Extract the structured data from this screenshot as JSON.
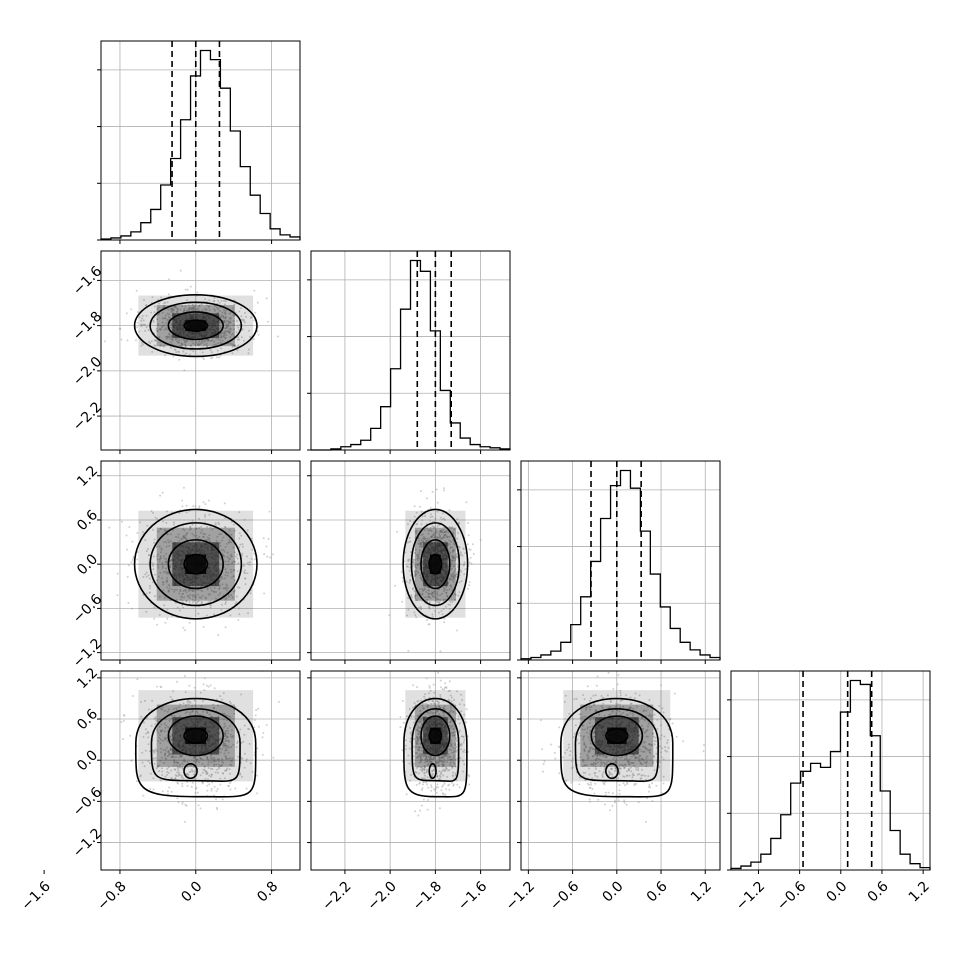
{
  "chart_data": {
    "type": "corner",
    "parameters": [
      {
        "name": "",
        "range": [
          -1.0,
          1.1
        ],
        "ticks": [
          -1.6,
          -0.8,
          0.0,
          0.8
        ],
        "tick_labels": [
          "−1.6",
          "−0.8",
          "0.0",
          "0.8"
        ]
      },
      {
        "name": "",
        "range": [
          -2.35,
          -1.47
        ],
        "ticks": [
          -2.2,
          -2.0,
          -1.8,
          -1.6
        ],
        "tick_labels": [
          "−2.2",
          "−2.0",
          "−1.8",
          "−1.6"
        ]
      },
      {
        "name": "",
        "range": [
          -1.3,
          1.4
        ],
        "ticks": [
          -1.2,
          -0.6,
          0.0,
          0.6,
          1.2
        ],
        "tick_labels": [
          "−1.2",
          "−0.6",
          "0.0",
          "0.6",
          "1.2"
        ]
      },
      {
        "name": "",
        "range": [
          -1.6,
          1.3
        ],
        "ticks": [
          -1.2,
          -0.6,
          0.0,
          0.6,
          1.2
        ],
        "tick_labels": [
          "−1.2",
          "−0.6",
          "0.0",
          "0.6",
          "1.2"
        ]
      }
    ],
    "histograms": [
      {
        "bin_edges_range": [
          -1.0,
          1.1
        ],
        "counts": [
          1,
          2,
          4,
          8,
          17,
          30,
          54,
          80,
          118,
          161,
          186,
          177,
          149,
          107,
          72,
          44,
          26,
          11,
          5,
          3
        ],
        "quantiles": [
          -0.25,
          0.0,
          0.25
        ]
      },
      {
        "bin_edges_range": [
          -2.35,
          -1.47
        ],
        "counts": [
          0,
          0,
          1,
          3,
          5,
          9,
          20,
          40,
          75,
          130,
          175,
          165,
          110,
          55,
          25,
          11,
          5,
          3,
          2,
          1
        ],
        "quantiles": [
          -1.88,
          -1.8,
          -1.73
        ]
      },
      {
        "bin_edges_range": [
          -1.3,
          1.4
        ],
        "counts": [
          1,
          2,
          4,
          7,
          14,
          28,
          50,
          78,
          112,
          138,
          150,
          136,
          102,
          68,
          42,
          25,
          14,
          8,
          4,
          2
        ],
        "quantiles": [
          -0.35,
          0.0,
          0.33
        ]
      },
      {
        "bin_edges_range": [
          -1.6,
          1.3
        ],
        "counts": [
          2,
          5,
          10,
          20,
          40,
          70,
          110,
          125,
          135,
          130,
          150,
          200,
          240,
          235,
          170,
          100,
          50,
          20,
          8,
          3
        ],
        "quantiles": [
          -0.55,
          0.1,
          0.45
        ]
      }
    ],
    "pairs": [
      {
        "x": 0,
        "y": 1,
        "center": [
          0.0,
          -1.8
        ],
        "spread": [
          0.5,
          0.11
        ]
      },
      {
        "x": 0,
        "y": 2,
        "center": [
          0.0,
          0.0
        ],
        "spread": [
          0.5,
          0.6
        ]
      },
      {
        "x": 1,
        "y": 2,
        "center": [
          -1.8,
          0.0
        ],
        "spread": [
          0.11,
          0.6
        ]
      },
      {
        "x": 0,
        "y": 3,
        "center": [
          0.0,
          0.25
        ],
        "spread": [
          0.5,
          0.55
        ],
        "secondary": [
          0.0,
          -0.35
        ]
      },
      {
        "x": 1,
        "y": 3,
        "center": [
          -1.8,
          0.25
        ],
        "spread": [
          0.11,
          0.55
        ],
        "secondary": [
          -1.8,
          -0.35
        ]
      },
      {
        "x": 2,
        "y": 3,
        "center": [
          0.0,
          0.25
        ],
        "spread": [
          0.6,
          0.55
        ],
        "secondary": [
          0.0,
          -0.35
        ]
      }
    ],
    "grid": true,
    "xlabel": "",
    "ylabel": "",
    "title": ""
  }
}
